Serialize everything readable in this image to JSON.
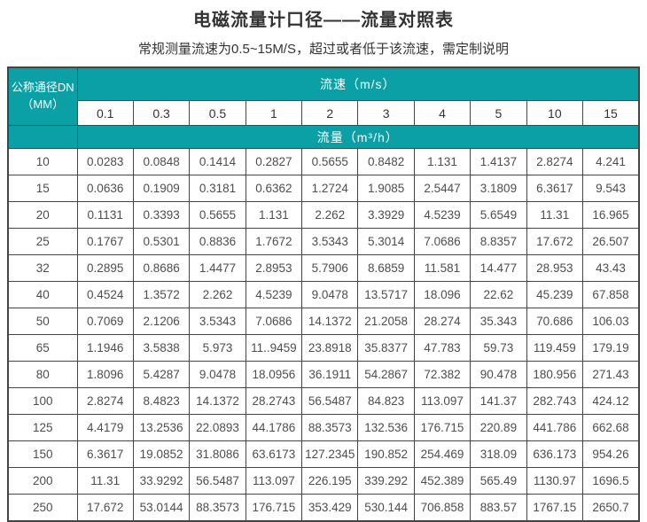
{
  "header": {
    "title": "电磁流量计口径——流量对照表",
    "subtitle": "常规测量流速为0.5~15M/S，超过或者低于该流速，需定制说明"
  },
  "table": {
    "corner_line1": "公称通径DN",
    "corner_line2": "（MM）",
    "speed_header": "流速（m/s）",
    "flow_header": "流量（m³/h）",
    "speeds": [
      "0.1",
      "0.3",
      "0.5",
      "1",
      "2",
      "3",
      "4",
      "5",
      "10",
      "15"
    ],
    "rows": [
      {
        "dn": "10",
        "values": [
          "0.0283",
          "0.0848",
          "0.1414",
          "0.2827",
          "0.5655",
          "0.8482",
          "1.131",
          "1.4137",
          "2.8274",
          "4.241"
        ]
      },
      {
        "dn": "15",
        "values": [
          "0.0636",
          "0.1909",
          "0.3181",
          "0.6362",
          "1.2724",
          "1.9085",
          "2.5447",
          "3.1809",
          "6.3617",
          "9.543"
        ]
      },
      {
        "dn": "20",
        "values": [
          "0.1131",
          "0.3393",
          "0.5655",
          "1.131",
          "2.262",
          "3.3929",
          "4.5239",
          "5.6549",
          "11.31",
          "16.965"
        ]
      },
      {
        "dn": "25",
        "values": [
          "0.1767",
          "0.5301",
          "0.8836",
          "1.7672",
          "3.5343",
          "5.3014",
          "7.0686",
          "8.8357",
          "17.672",
          "26.507"
        ]
      },
      {
        "dn": "32",
        "values": [
          "0.2895",
          "0.8686",
          "1.4477",
          "2.8953",
          "5.7906",
          "8.6859",
          "11.581",
          "14.477",
          "28.953",
          "43.43"
        ]
      },
      {
        "dn": "40",
        "values": [
          "0.4524",
          "1.3572",
          "2.262",
          "4.5239",
          "9.0478",
          "13.5717",
          "18.096",
          "22.62",
          "45.239",
          "67.858"
        ]
      },
      {
        "dn": "50",
        "values": [
          "0.7069",
          "2.1206",
          "3.5343",
          "7.0686",
          "14.1372",
          "21.2058",
          "28.274",
          "35.343",
          "70.686",
          "106.03"
        ]
      },
      {
        "dn": "65",
        "values": [
          "1.1946",
          "3.5838",
          "5.973",
          "11..9459",
          "23.8918",
          "35.8377",
          "47.783",
          "59.73",
          "119.459",
          "179.19"
        ]
      },
      {
        "dn": "80",
        "values": [
          "1.8096",
          "5.4287",
          "9.0478",
          "18.0956",
          "36.1911",
          "54.2867",
          "72.382",
          "90.478",
          "180.956",
          "271.43"
        ]
      },
      {
        "dn": "100",
        "values": [
          "2.8274",
          "8.4823",
          "14.1372",
          "28.2743",
          "56.5487",
          "84.823",
          "113.097",
          "141.37",
          "282.743",
          "424.12"
        ]
      },
      {
        "dn": "125",
        "values": [
          "4.4179",
          "13.2536",
          "22.0893",
          "44.1786",
          "88.3573",
          "132.536",
          "176.715",
          "220.89",
          "441.786",
          "662.68"
        ]
      },
      {
        "dn": "150",
        "values": [
          "6.3617",
          "19.0852",
          "31.8086",
          "63.6173",
          "127.2345",
          "190.852",
          "254.469",
          "318.09",
          "636.173",
          "954.26"
        ]
      },
      {
        "dn": "200",
        "values": [
          "11.31",
          "33.9292",
          "56.5487",
          "113.097",
          "226.195",
          "339.292",
          "452.389",
          "565.49",
          "1130.97",
          "1696.5"
        ]
      },
      {
        "dn": "250",
        "values": [
          "17.672",
          "53.0144",
          "88.3573",
          "176.715",
          "353.429",
          "530.144",
          "706.858",
          "883.57",
          "1767.15",
          "2650.7"
        ]
      }
    ]
  },
  "colors": {
    "teal": "#0aa0a6",
    "border": "#454545",
    "text_dark": "#333333",
    "text_value": "#4d4d4d"
  }
}
